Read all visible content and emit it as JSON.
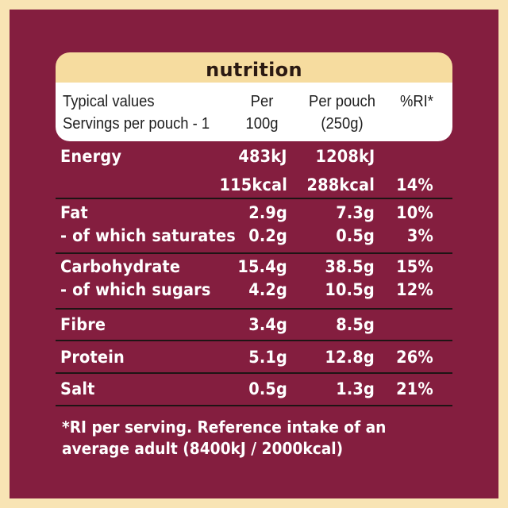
{
  "title": "nutrition",
  "header": {
    "typical_values": "Typical values",
    "servings_per_pouch": "Servings per pouch - 1",
    "per_label": "Per",
    "per_amount": "100g",
    "per_pouch_label": "Per pouch",
    "per_pouch_amount": "(250g)",
    "ri_label": "%RI*"
  },
  "rows": {
    "energy_kj": {
      "label": "Energy",
      "per100": "483kJ",
      "perPouch": "1208kJ",
      "ri": ""
    },
    "energy_kcal": {
      "label": "",
      "per100": "115kcal",
      "perPouch": "288kcal",
      "ri": "14%"
    },
    "fat": {
      "label": "Fat",
      "per100": "2.9g",
      "perPouch": "7.3g",
      "ri": "10%"
    },
    "saturates": {
      "label": "- of which saturates",
      "per100": "0.2g",
      "perPouch": "0.5g",
      "ri": "3%"
    },
    "carbohydrate": {
      "label": "Carbohydrate",
      "per100": "15.4g",
      "perPouch": "38.5g",
      "ri": "15%"
    },
    "sugars": {
      "label": "- of which sugars",
      "per100": "4.2g",
      "perPouch": "10.5g",
      "ri": "12%"
    },
    "fibre": {
      "label": "Fibre",
      "per100": "3.4g",
      "perPouch": "8.5g",
      "ri": ""
    },
    "protein": {
      "label": "Protein",
      "per100": "5.1g",
      "perPouch": "12.8g",
      "ri": "26%"
    },
    "salt": {
      "label": "Salt",
      "per100": "0.5g",
      "perPouch": "1.3g",
      "ri": "21%"
    }
  },
  "footnote": {
    "line1": "*RI per serving. Reference intake of an",
    "line2": "average adult (8400kJ / 2000kcal)"
  },
  "colors": {
    "background": "#f8e4b4",
    "panel": "#841e3f",
    "header_pill": "#f6dc9f",
    "header_box": "#ffffff",
    "text_light": "#ffffff",
    "text_dark": "#1e1e1e"
  }
}
